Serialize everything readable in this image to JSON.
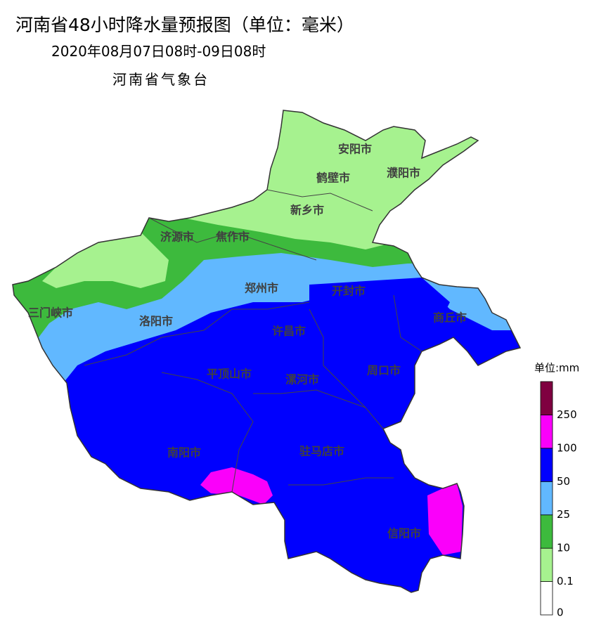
{
  "header": {
    "title": "河南省48小时降水量预报图（单位：毫米）",
    "period": "2020年08月07日08时-09日08时",
    "issuer": "河南省气象台"
  },
  "cities": [
    "安阳市",
    "鹤壁市",
    "濮阳市",
    "新乡市",
    "济源市",
    "焦作市",
    "三门峡市",
    "郑州市",
    "开封市",
    "洛阳市",
    "商丘市",
    "许昌市",
    "平顶山市",
    "周口市",
    "漯河市",
    "南阳市",
    "驻马店市",
    "信阳市"
  ],
  "legend": {
    "title": "单位:mm",
    "ticks": [
      0,
      0.1,
      10,
      25,
      50,
      100,
      250
    ],
    "colors": [
      "#ffffff",
      "#a6f28f",
      "#3dba3d",
      "#61b8ff",
      "#0000fe",
      "#fa00fa",
      "#7f0040"
    ]
  }
}
